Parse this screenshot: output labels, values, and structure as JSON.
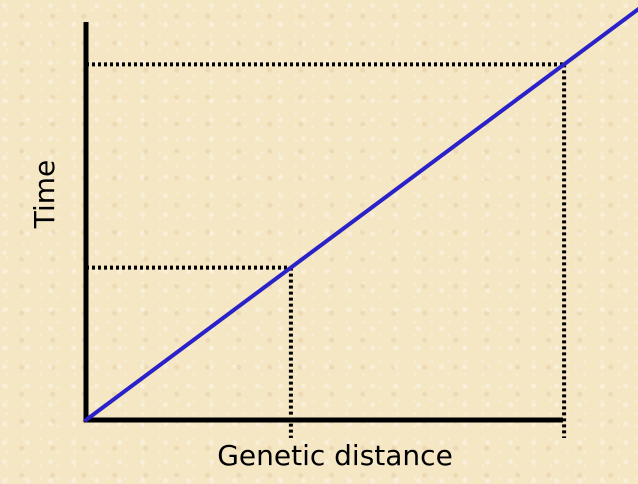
{
  "chart_data": {
    "type": "line",
    "xlabel": "Genetic distance",
    "ylabel": "Time",
    "xlim": [
      0,
      1
    ],
    "ylim": [
      0,
      1
    ],
    "grid": false,
    "series": [
      {
        "x": [
          0,
          1
        ],
        "y": [
          0,
          1
        ],
        "color": "#2a22c8"
      }
    ],
    "reference_points": [
      {
        "x": 0.3,
        "y": 0.3
      },
      {
        "x": 0.7,
        "y": 0.7
      }
    ],
    "colors": {
      "axis": "#000000",
      "line": "#2a22c8",
      "guide": "#000000"
    }
  }
}
